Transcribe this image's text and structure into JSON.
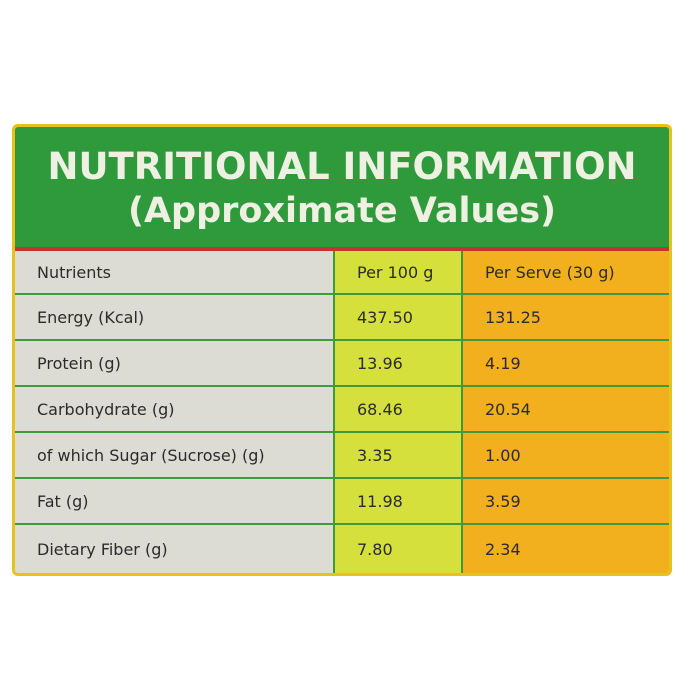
{
  "header": {
    "title": "NUTRITIONAL INFORMATION",
    "subtitle": "(Approximate Values)"
  },
  "table": {
    "columns": [
      "Nutrients",
      "Per 100 g",
      "Per Serve (30 g)"
    ],
    "rows": [
      [
        "Energy (Kcal)",
        "437.50",
        "131.25"
      ],
      [
        "Protein (g)",
        "13.96",
        "4.19"
      ],
      [
        "Carbohydrate (g)",
        "68.46",
        "20.54"
      ],
      [
        "of which Sugar (Sucrose) (g)",
        "3.35",
        "1.00"
      ],
      [
        "Fat (g)",
        "11.98",
        "3.59"
      ],
      [
        "Dietary Fiber (g)",
        "7.80",
        "2.34"
      ]
    ]
  }
}
